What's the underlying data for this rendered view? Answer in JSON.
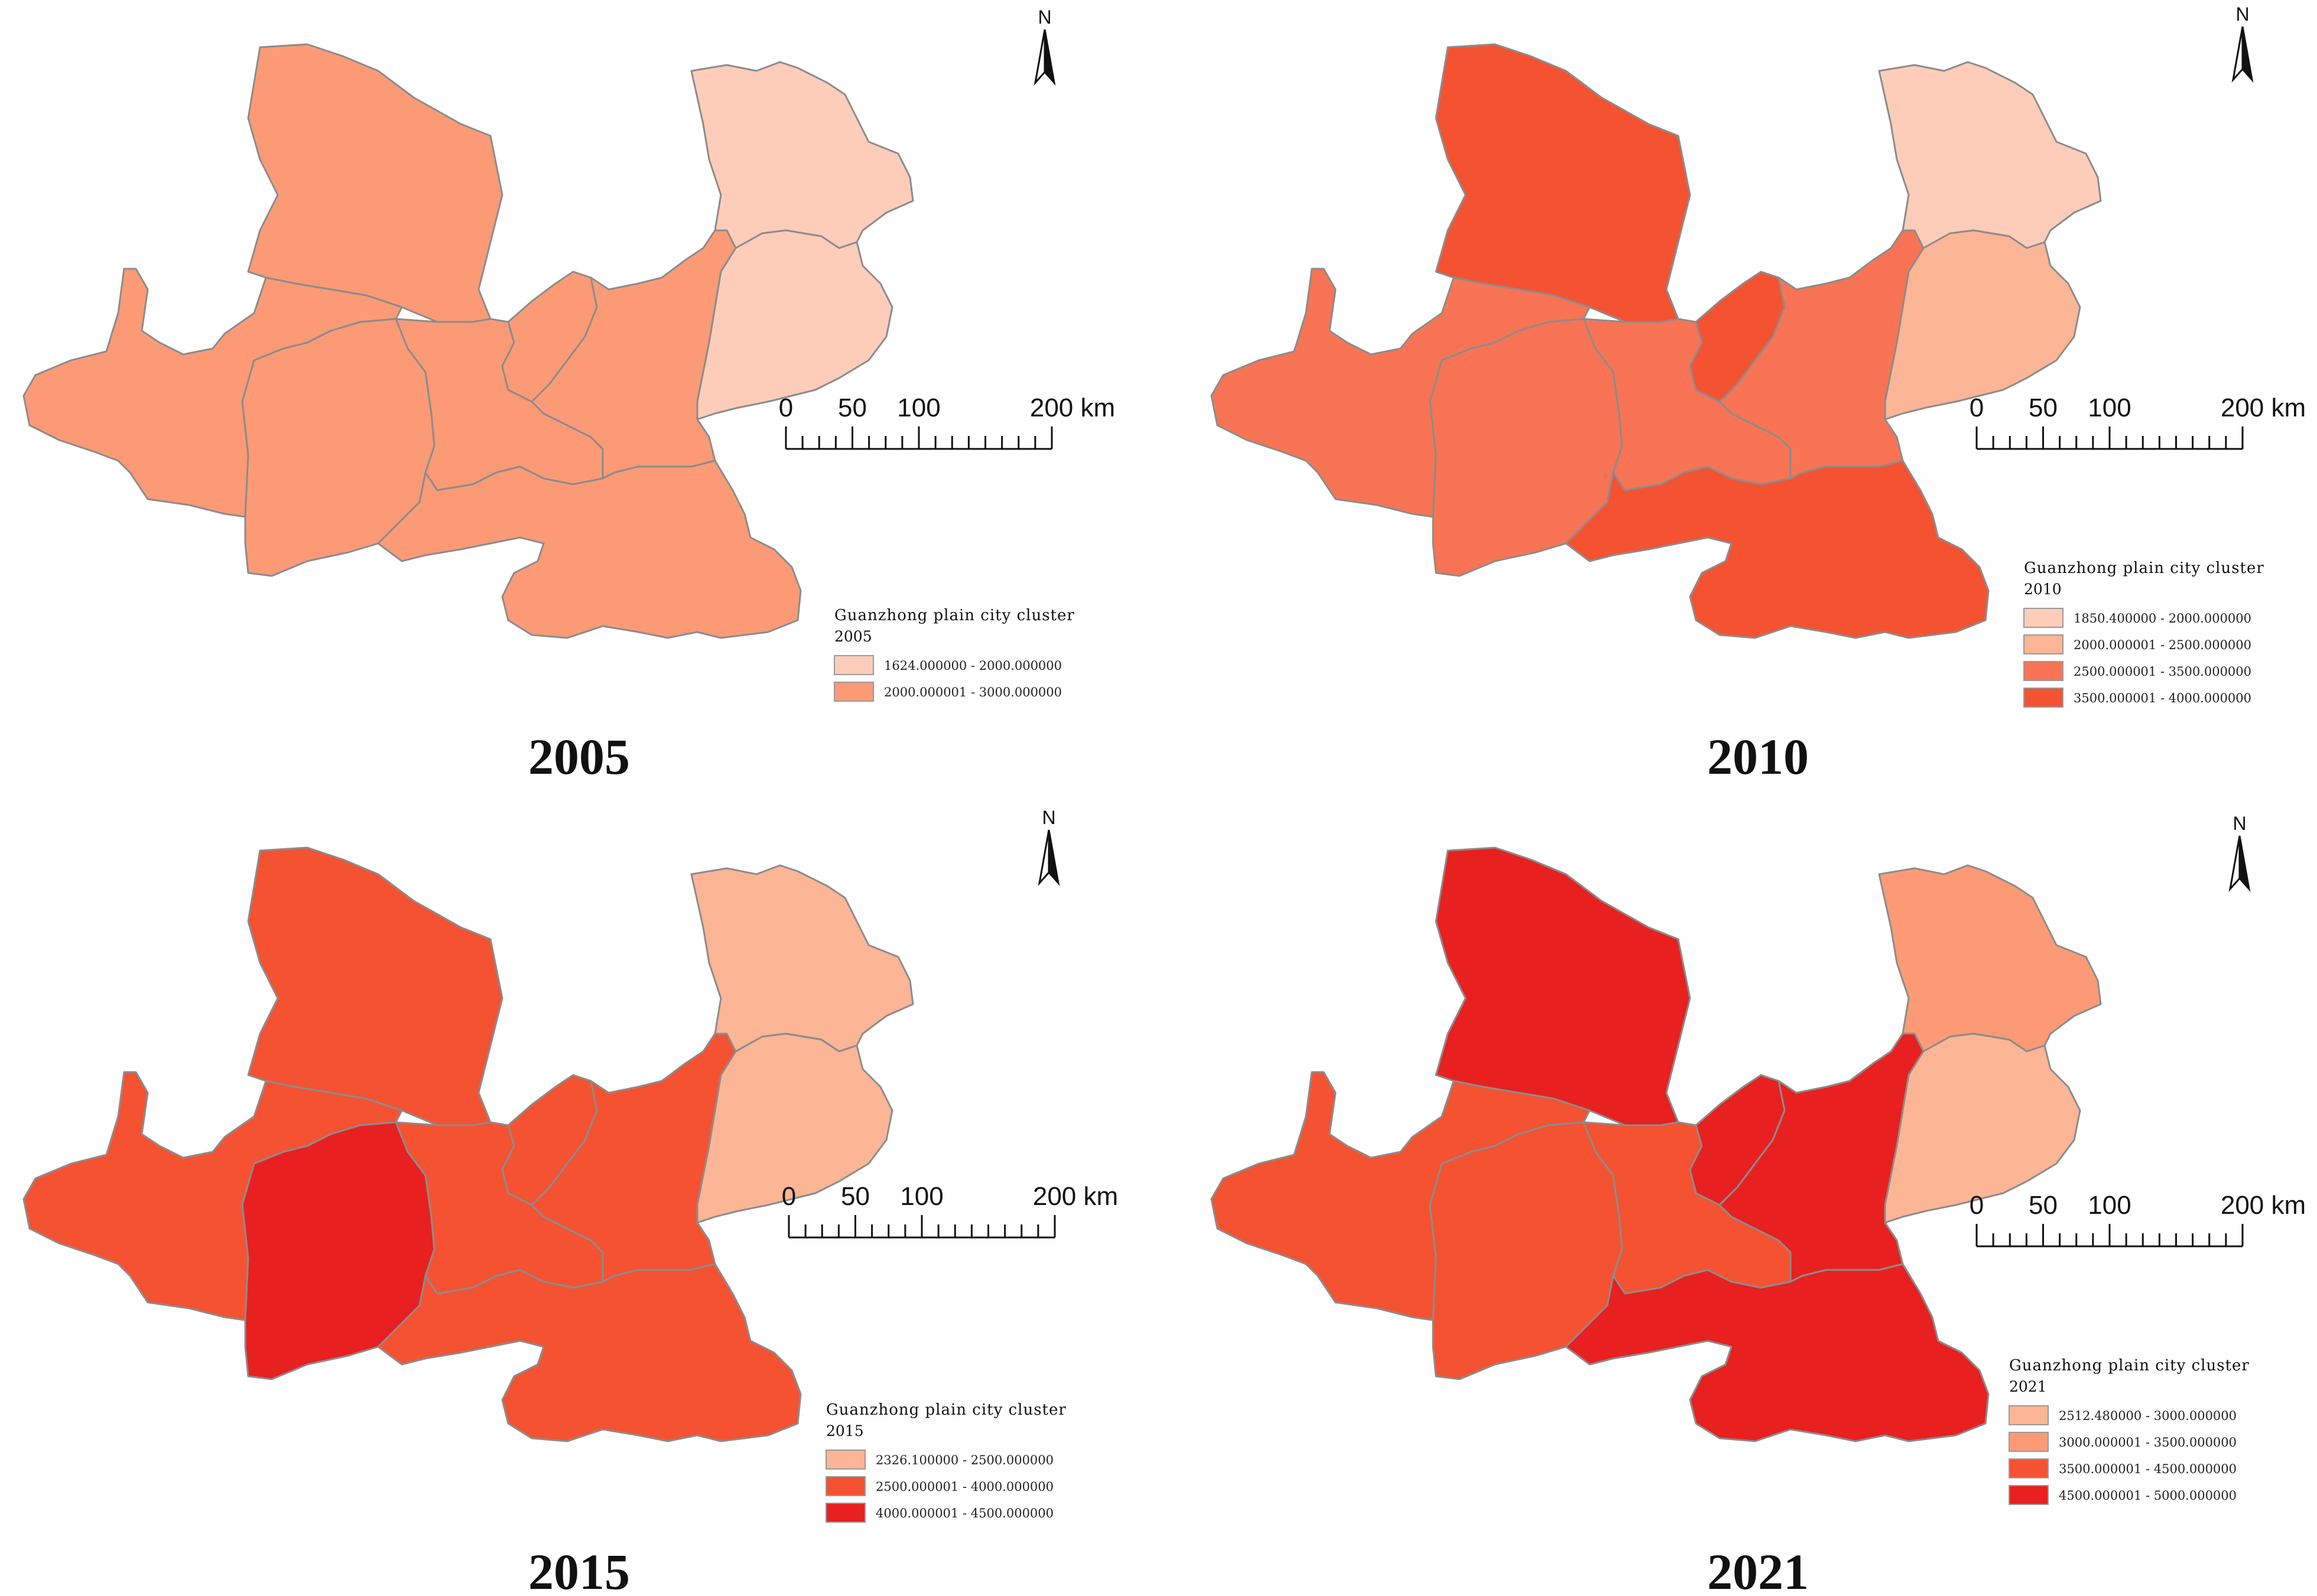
{
  "panels": [
    {
      "year_caption": "2005",
      "legend": {
        "title": "Guanzhong plain city cluster",
        "year": "2005",
        "classes": [
          {
            "label": "1624.000000 - 2000.000000",
            "color": "#fdcdb9"
          },
          {
            "label": "2000.000001 - 3000.000000",
            "color": "#fc9a76"
          }
        ]
      },
      "scale_bar": {
        "labels": [
          "0",
          "50",
          "100",
          "200 km"
        ]
      },
      "north_arrow": {
        "label": "N"
      },
      "regions": {
        "north": "#fc9a76",
        "west": "#fc9a76",
        "centerwest": "#fc9a76",
        "center": "#fc9a76",
        "gap": "#fc9a76",
        "east": "#fc9a76",
        "south": "#fc9a76",
        "ne_upper": "#fdcdb9",
        "ne_lower": "#fdcdb9"
      }
    },
    {
      "year_caption": "2010",
      "legend": {
        "title": "Guanzhong plain city cluster",
        "year": "2010",
        "classes": [
          {
            "label": "1850.400000 - 2000.000000",
            "color": "#fdcdb9"
          },
          {
            "label": "2000.000001 - 2500.000000",
            "color": "#fcb595"
          },
          {
            "label": "2500.000001 - 3500.000000",
            "color": "#f87454"
          },
          {
            "label": "3500.000001 - 4000.000000",
            "color": "#f55232"
          }
        ]
      },
      "scale_bar": {
        "labels": [
          "0",
          "50",
          "100",
          "200 km"
        ]
      },
      "north_arrow": {
        "label": "N"
      },
      "regions": {
        "north": "#f55232",
        "west": "#f87454",
        "centerwest": "#f87454",
        "center": "#f87454",
        "gap": "#f55232",
        "east": "#f87454",
        "south": "#f55232",
        "ne_upper": "#fdcdb9",
        "ne_lower": "#fcb595"
      }
    },
    {
      "year_caption": "2015",
      "legend": {
        "title": "Guanzhong plain city cluster",
        "year": "2015",
        "classes": [
          {
            "label": "2326.100000 - 2500.000000",
            "color": "#fcb595"
          },
          {
            "label": "2500.000001 - 4000.000000",
            "color": "#f55232"
          },
          {
            "label": "4000.000001 - 4500.000000",
            "color": "#e8201f"
          }
        ]
      },
      "scale_bar": {
        "labels": [
          "0",
          "50",
          "100",
          "200 km"
        ]
      },
      "north_arrow": {
        "label": "N"
      },
      "regions": {
        "north": "#f55232",
        "west": "#f55232",
        "centerwest": "#e8201f",
        "center": "#f55232",
        "gap": "#f55232",
        "east": "#f55232",
        "south": "#f55232",
        "ne_upper": "#fcb595",
        "ne_lower": "#fcb595"
      }
    },
    {
      "year_caption": "2021",
      "legend": {
        "title": "Guanzhong plain city cluster",
        "year": "2021",
        "classes": [
          {
            "label": "2512.480000 - 3000.000000",
            "color": "#fcb595"
          },
          {
            "label": "3000.000001 - 3500.000000",
            "color": "#fc9a76"
          },
          {
            "label": "3500.000001 - 4500.000000",
            "color": "#f55232"
          },
          {
            "label": "4500.000001 - 5000.000000",
            "color": "#e8201f"
          }
        ]
      },
      "scale_bar": {
        "labels": [
          "0",
          "50",
          "100",
          "200 km"
        ]
      },
      "north_arrow": {
        "label": "N"
      },
      "regions": {
        "north": "#e8201f",
        "west": "#f55232",
        "centerwest": "#f55232",
        "center": "#f55232",
        "gap": "#e8201f",
        "east": "#e8201f",
        "south": "#e8201f",
        "ne_upper": "#fc9a76",
        "ne_lower": "#fcb595"
      }
    }
  ]
}
